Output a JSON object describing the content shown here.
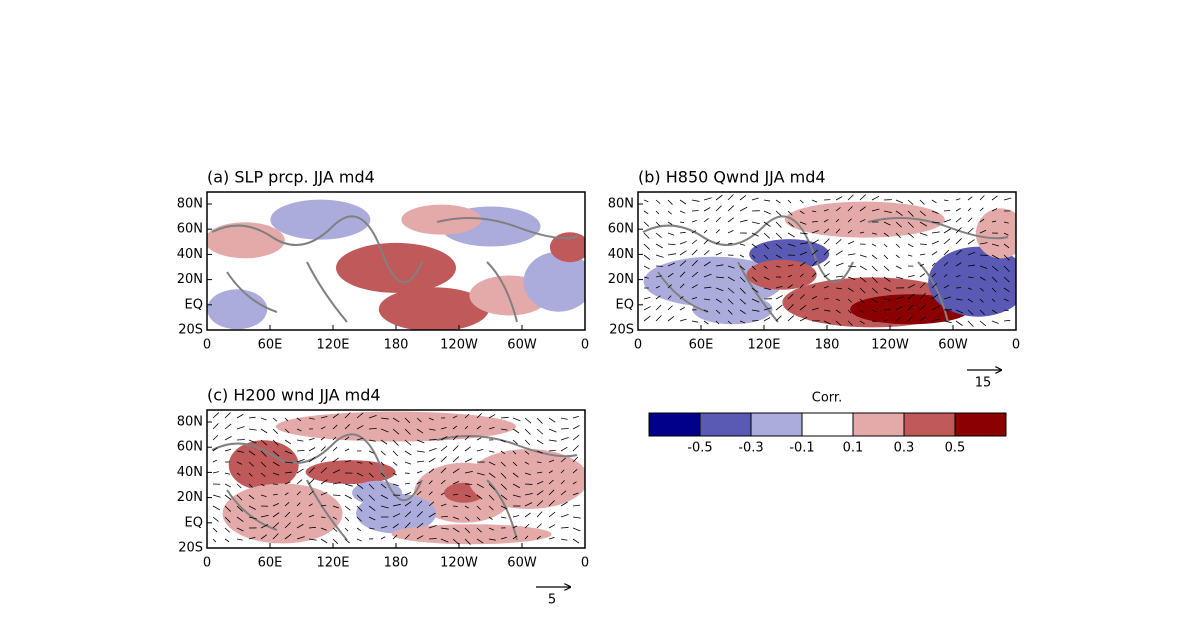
{
  "panels": [
    {
      "title": "(a) SLP prcp. JJA md4",
      "lat_labels": [
        "80N",
        "60N",
        "40N",
        "20N",
        "EQ",
        "20S"
      ],
      "lon_labels": [
        "0",
        "60E",
        "120E",
        "180",
        "120W",
        "60W",
        "0"
      ]
    },
    {
      "title": "(b) H850 Qwnd JJA md4",
      "lat_labels": [
        "80N",
        "60N",
        "40N",
        "20N",
        "EQ",
        "20S"
      ],
      "lon_labels": [
        "0",
        "60E",
        "120E",
        "180",
        "120W",
        "60W",
        "0"
      ],
      "reference_vector": "15"
    },
    {
      "title": "(c) H200 wnd JJA md4",
      "lat_labels": [
        "80N",
        "60N",
        "40N",
        "20N",
        "EQ",
        "20S"
      ],
      "lon_labels": [
        "0",
        "60E",
        "120E",
        "180",
        "120W",
        "60W",
        "0"
      ],
      "reference_vector": "5"
    }
  ],
  "colorbar": {
    "title": "Corr.",
    "labels": [
      "-0.5",
      "-0.3",
      "-0.1",
      "0.1",
      "0.3",
      "0.5"
    ],
    "colors": [
      "#00008b",
      "#5a5ab4",
      "#acacdc",
      "#ffffff",
      "#e4aaaa",
      "#c05a5a",
      "#8b0000"
    ]
  }
}
